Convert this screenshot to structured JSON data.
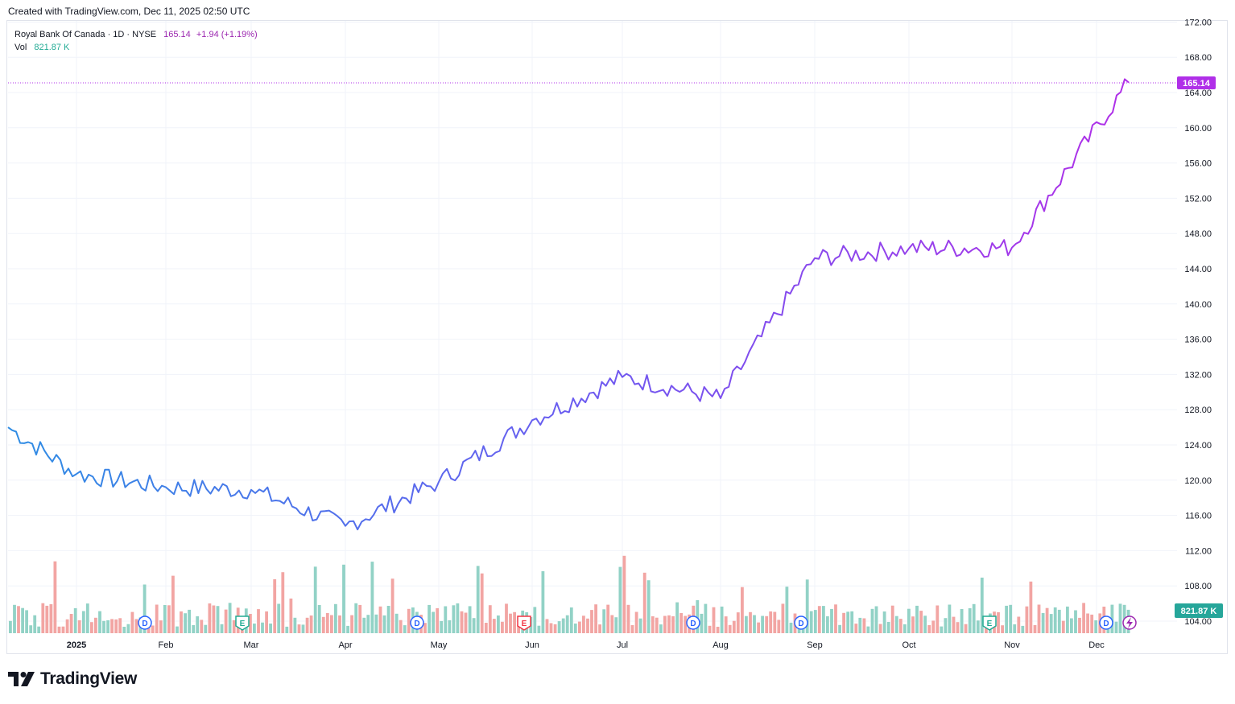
{
  "header": {
    "created": "Created with TradingView.com, Dec 11, 2025 02:50 UTC"
  },
  "legend": {
    "symbol": "Royal Bank Of Canada · 1D · NYSE",
    "price": "165.14",
    "change": "+1.94 (+1.19%)",
    "vol_label": "Vol",
    "vol_value": "821.87 K"
  },
  "badges": {
    "price": "165.14",
    "volume": "821.87 K"
  },
  "footer": {
    "brand": "TradingView"
  },
  "colors": {
    "price_start": "#2f8de4",
    "price_mid": "#6a5cf0",
    "price_end": "#b02fe8",
    "vol_up": "#92d2c6",
    "vol_down": "#f2a5a3",
    "grid": "#f0f3fa",
    "price_badge": "#b02fe8",
    "vol_badge": "#26a69a"
  },
  "chart_data": {
    "type": "line",
    "title": "Royal Bank Of Canada · 1D · NYSE",
    "y_ticks": [
      "104.00",
      "108.00",
      "112.00",
      "116.00",
      "120.00",
      "124.00",
      "128.00",
      "132.00",
      "136.00",
      "140.00",
      "144.00",
      "148.00",
      "152.00",
      "156.00",
      "160.00",
      "164.00",
      "168.00",
      "172.00"
    ],
    "ylim": [
      104,
      172
    ],
    "x_ticks": [
      "2025",
      "Feb",
      "Mar",
      "Apr",
      "May",
      "Jun",
      "Jul",
      "Aug",
      "Sep",
      "Oct",
      "Nov",
      "Dec"
    ],
    "x": [
      "Dec 17",
      "Jan 2",
      "Feb 3",
      "Mar 3",
      "Apr 1",
      "May 1",
      "Jun 2",
      "Jul 1",
      "Aug 1",
      "Sep 2",
      "Oct 1",
      "Nov 3",
      "Dec 10"
    ],
    "series": [
      {
        "values": [
          126.0,
          120.7,
          119.2,
          118.9,
          114.8,
          119.8,
          126.8,
          131.7,
          129.3,
          145.2,
          146.3,
          146.4,
          165.14
        ]
      }
    ],
    "volume_last": "821.87 K",
    "events": [
      "D",
      "E",
      "D",
      "E",
      "D",
      "D",
      "E",
      "D",
      "E"
    ],
    "grid": true
  }
}
